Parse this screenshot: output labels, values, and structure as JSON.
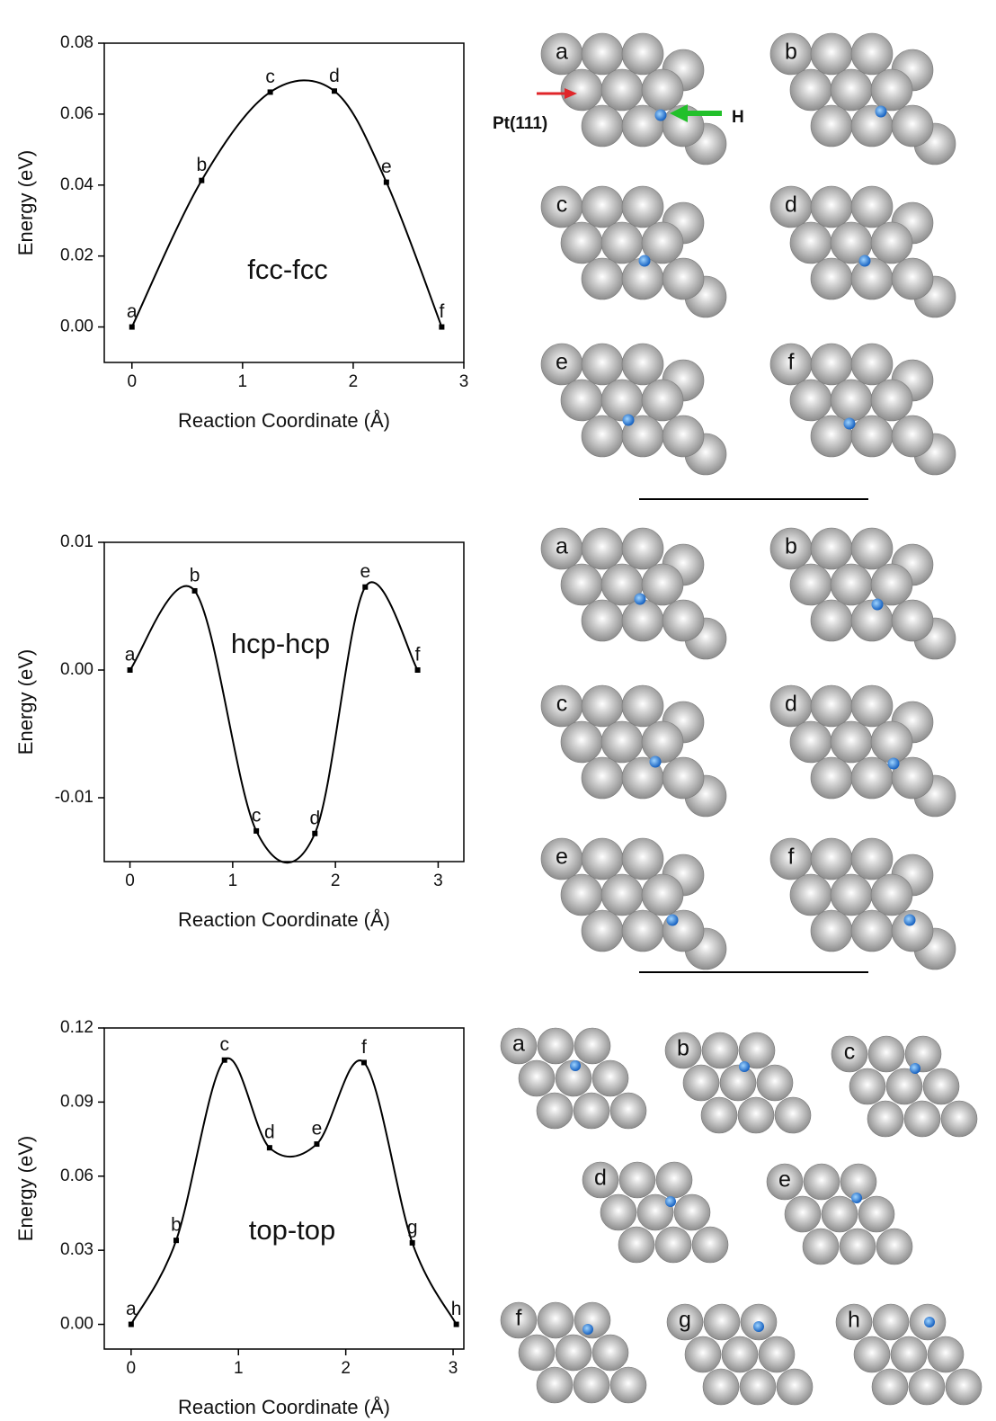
{
  "chart_data": [
    {
      "type": "line",
      "x": [
        0,
        0.63,
        1.25,
        1.83,
        2.3,
        2.8
      ],
      "values": [
        0,
        0.0413,
        0.0662,
        0.0665,
        0.0408,
        0
      ],
      "point_labels": [
        "a",
        "b",
        "c",
        "d",
        "e",
        "f"
      ],
      "annotation": "fcc-fcc",
      "x_label": "Reaction Coordinate (Å)",
      "y_label": "Energy (eV)",
      "color": "#000000",
      "xlim": [
        -0.25,
        3
      ],
      "ylim": [
        -0.01,
        0.08
      ],
      "xticks": [
        0,
        1,
        2,
        3
      ],
      "yticks": [
        {
          "value": 0,
          "label": "0.00"
        },
        0.02,
        0.04,
        0.06,
        0.08
      ]
    },
    {
      "type": "line",
      "x": [
        0,
        0.63,
        1.23,
        1.8,
        2.29,
        2.8
      ],
      "values": [
        0,
        0.0062,
        -0.0126,
        -0.0128,
        0.0065,
        0
      ],
      "point_labels": [
        "a",
        "b",
        "c",
        "d",
        "e",
        "f"
      ],
      "annotation": "hcp-hcp",
      "x_label": "Reaction Coordinate (Å)",
      "y_label": "Energy (eV)",
      "color": "#000000",
      "xlim": [
        -0.25,
        3.25
      ],
      "ylim": [
        -0.015,
        0.01
      ],
      "xticks": [
        0,
        1,
        2,
        3
      ],
      "yticks": [
        -0.01,
        {
          "value": 0,
          "label": "0.00"
        },
        0.01
      ]
    },
    {
      "type": "line",
      "x": [
        0,
        0.42,
        0.87,
        1.29,
        1.73,
        2.17,
        2.62,
        3.03
      ],
      "values": [
        0,
        0.034,
        0.107,
        0.0715,
        0.073,
        0.106,
        0.033,
        0
      ],
      "point_labels": [
        "a",
        "b",
        "c",
        "d",
        "e",
        "f",
        "g",
        "h"
      ],
      "annotation": "top-top",
      "x_label": "Reaction Coordinate (Å)",
      "y_label": "Energy (eV)",
      "color": "#000000",
      "xlim": [
        -0.25,
        3.1
      ],
      "ylim": [
        -0.01,
        0.12
      ],
      "xticks": [
        0,
        1,
        2,
        3
      ],
      "yticks": [
        {
          "value": 0,
          "label": "0.00"
        },
        0.03,
        0.06,
        0.09,
        0.12
      ]
    }
  ],
  "structures": [
    {
      "labels": [
        "a",
        "b",
        "c",
        "d",
        "e",
        "f"
      ]
    },
    {
      "labels": [
        "a",
        "b",
        "c",
        "d",
        "e",
        "f"
      ]
    },
    {
      "labels": [
        "a",
        "b",
        "c",
        "d",
        "e",
        "f",
        "g",
        "h"
      ]
    }
  ],
  "pointer_labels": [
    "Pt(111)",
    "H"
  ]
}
